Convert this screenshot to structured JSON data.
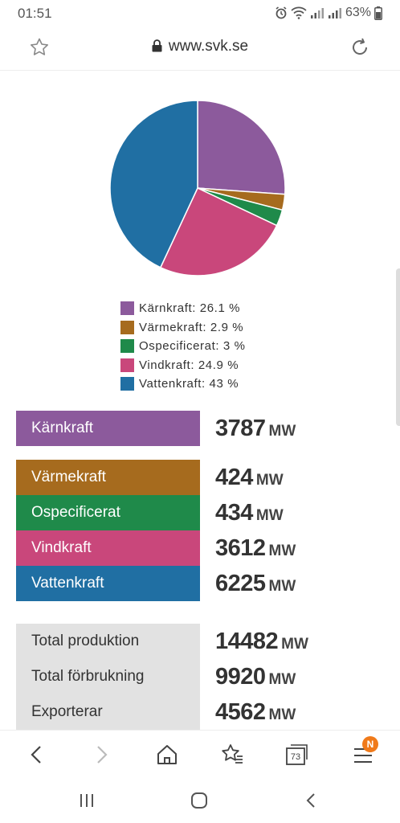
{
  "status_bar": {
    "time": "01:51",
    "battery": "63%",
    "icons": [
      "alarm-icon",
      "wifi-icon",
      "signal-icon",
      "signal-icon",
      "battery-icon"
    ]
  },
  "address_bar": {
    "url": "www.svk.se",
    "icons": [
      "star-icon",
      "lock-icon",
      "reload-icon"
    ]
  },
  "chart_data": {
    "type": "pie",
    "categories": [
      "Kärnkraft",
      "Värmekraft",
      "Ospecificerat",
      "Vindkraft",
      "Vattenkraft"
    ],
    "values": [
      26.1,
      2.9,
      3,
      24.9,
      43
    ],
    "colors": [
      "#8c5a9c",
      "#a66b1e",
      "#1f8a4a",
      "#c9477b",
      "#206fa3"
    ],
    "legend": [
      "Kärnkraft: 26.1 %",
      "Värmekraft: 2.9 %",
      "Ospecificerat: 3 %",
      "Vindkraft: 24.9 %",
      "Vattenkraft: 43 %"
    ],
    "legend_placement": "bottom"
  },
  "production": [
    {
      "label": "Kärnkraft",
      "value": "3787",
      "unit": "MW",
      "color": "#8c5a9c"
    },
    {
      "label": "Värmekraft",
      "value": "424",
      "unit": "MW",
      "color": "#a66b1e"
    },
    {
      "label": "Ospecificerat",
      "value": "434",
      "unit": "MW",
      "color": "#1f8a4a"
    },
    {
      "label": "Vindkraft",
      "value": "3612",
      "unit": "MW",
      "color": "#c9477b"
    },
    {
      "label": "Vattenkraft",
      "value": "6225",
      "unit": "MW",
      "color": "#206fa3"
    }
  ],
  "totals": [
    {
      "label": "Total produktion",
      "value": "14482",
      "unit": "MW"
    },
    {
      "label": "Total förbrukning",
      "value": "9920",
      "unit": "MW"
    },
    {
      "label": "Exporterar",
      "value": "4562",
      "unit": "MW"
    }
  ],
  "toolbar": {
    "tabs_count": "73",
    "menu_badge": "N",
    "icons": [
      "back-icon",
      "forward-icon",
      "home-icon",
      "bookmarks-icon",
      "tabs-icon",
      "menu-icon"
    ]
  },
  "android_nav": {
    "icons": [
      "recent-apps-icon",
      "home-nav-icon",
      "back-nav-icon"
    ]
  }
}
